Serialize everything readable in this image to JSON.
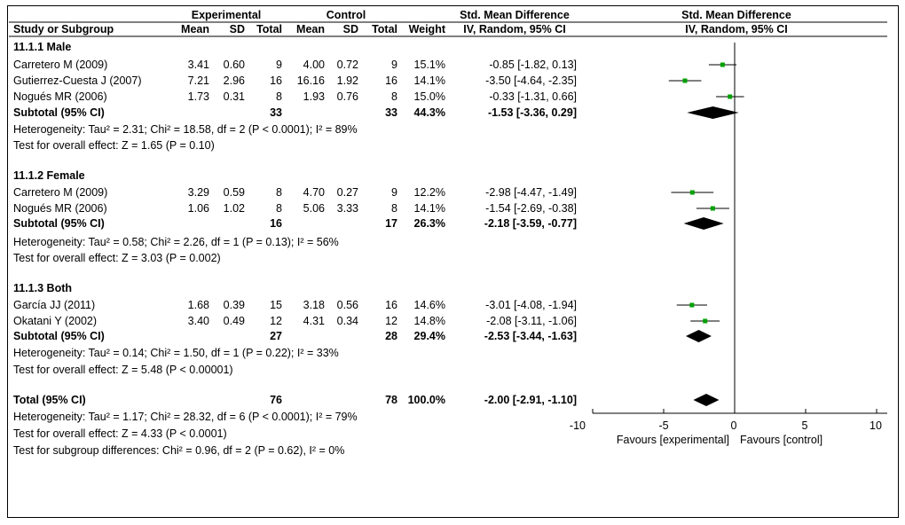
{
  "header": {
    "study_or_subgroup": "Study or Subgroup",
    "experimental": "Experimental",
    "control": "Control",
    "mean": "Mean",
    "sd": "SD",
    "total": "Total",
    "weight": "Weight",
    "smd": "Std. Mean Difference",
    "method": "IV, Random, 95% CI"
  },
  "groups": [
    {
      "title": "11.1.1 Male",
      "studies": [
        {
          "study": "Carretero M (2009)",
          "e_mean": "3.41",
          "e_sd": "0.60",
          "e_total": "9",
          "c_mean": "4.00",
          "c_sd": "0.72",
          "c_total": "9",
          "weight": "15.1%",
          "ci": "-0.85 [-1.82, 0.13]"
        },
        {
          "study": "Gutierrez-Cuesta J (2007)",
          "e_mean": "7.21",
          "e_sd": "2.96",
          "e_total": "16",
          "c_mean": "16.16",
          "c_sd": "1.92",
          "c_total": "16",
          "weight": "14.1%",
          "ci": "-3.50 [-4.64, -2.35]"
        },
        {
          "study": "Nogués MR (2006)",
          "e_mean": "1.73",
          "e_sd": "0.31",
          "e_total": "8",
          "c_mean": "1.93",
          "c_sd": "0.76",
          "c_total": "8",
          "weight": "15.0%",
          "ci": "-0.33 [-1.31, 0.66]"
        }
      ],
      "subtotal": {
        "label": "Subtotal (95% CI)",
        "e_total": "33",
        "c_total": "33",
        "weight": "44.3%",
        "ci": "-1.53 [-3.36, 0.29]"
      },
      "heterogeneity": "Heterogeneity: Tau² = 2.31; Chi² = 18.58, df = 2 (P < 0.0001); I² = 89%",
      "overall": "Test for overall effect: Z = 1.65 (P = 0.10)"
    },
    {
      "title": "11.1.2 Female",
      "studies": [
        {
          "study": "Carretero M (2009)",
          "e_mean": "3.29",
          "e_sd": "0.59",
          "e_total": "8",
          "c_mean": "4.70",
          "c_sd": "0.27",
          "c_total": "9",
          "weight": "12.2%",
          "ci": "-2.98 [-4.47, -1.49]"
        },
        {
          "study": "Nogués MR (2006)",
          "e_mean": "1.06",
          "e_sd": "1.02",
          "e_total": "8",
          "c_mean": "5.06",
          "c_sd": "3.33",
          "c_total": "8",
          "weight": "14.1%",
          "ci": "-1.54 [-2.69, -0.38]"
        }
      ],
      "subtotal": {
        "label": "Subtotal (95% CI)",
        "e_total": "16",
        "c_total": "17",
        "weight": "26.3%",
        "ci": "-2.18 [-3.59, -0.77]"
      },
      "heterogeneity": "Heterogeneity: Tau² = 0.58; Chi² = 2.26, df = 1 (P = 0.13); I² = 56%",
      "overall": "Test for overall effect: Z = 3.03 (P = 0.002)"
    },
    {
      "title": "11.1.3 Both",
      "studies": [
        {
          "study": "García JJ (2011)",
          "e_mean": "1.68",
          "e_sd": "0.39",
          "e_total": "15",
          "c_mean": "3.18",
          "c_sd": "0.56",
          "c_total": "16",
          "weight": "14.6%",
          "ci": "-3.01 [-4.08, -1.94]"
        },
        {
          "study": "Okatani Y (2002)",
          "e_mean": "3.40",
          "e_sd": "0.49",
          "e_total": "12",
          "c_mean": "4.31",
          "c_sd": "0.34",
          "c_total": "12",
          "weight": "14.8%",
          "ci": "-2.08 [-3.11, -1.06]"
        }
      ],
      "subtotal": {
        "label": "Subtotal (95% CI)",
        "e_total": "27",
        "c_total": "28",
        "weight": "29.4%",
        "ci": "-2.53 [-3.44, -1.63]"
      },
      "heterogeneity": "Heterogeneity: Tau² = 0.14; Chi² = 1.50, df = 1 (P = 0.22); I² = 33%",
      "overall": "Test for overall effect: Z = 5.48 (P < 0.00001)"
    }
  ],
  "total": {
    "label": "Total (95% CI)",
    "e_total": "76",
    "c_total": "78",
    "weight": "100.0%",
    "ci": "-2.00 [-2.91, -1.10]",
    "heterogeneity": "Heterogeneity: Tau² = 1.17; Chi² = 28.32, df = 6 (P < 0.0001); I² = 79%",
    "overall": "Test for overall effect: Z = 4.33 (P < 0.0001)",
    "subgroup_diff": "Test for subgroup differences: Chi² = 0.96, df = 2 (P = 0.62), I² = 0%"
  },
  "chart_data": {
    "type": "forest",
    "title": "Std. Mean Difference",
    "subtitle": "IV, Random, 95% CI",
    "xlim": [
      -10,
      10
    ],
    "xticks": [
      "-10",
      "-5",
      "0",
      "5",
      "10"
    ],
    "xtick_values": [
      -10,
      -5,
      0,
      5,
      10
    ],
    "favours_left": "Favours [experimental]",
    "favours_right": "Favours [control]",
    "studies": [
      {
        "name": "Carretero M (2009) Male",
        "est": -0.85,
        "lo": -1.82,
        "hi": 0.13
      },
      {
        "name": "Gutierrez-Cuesta J (2007)",
        "est": -3.5,
        "lo": -4.64,
        "hi": -2.35
      },
      {
        "name": "Nogués MR (2006) Male",
        "est": -0.33,
        "lo": -1.31,
        "hi": 0.66
      },
      {
        "name": "Carretero M (2009) Female",
        "est": -2.98,
        "lo": -4.47,
        "hi": -1.49
      },
      {
        "name": "Nogués MR (2006) Female",
        "est": -1.54,
        "lo": -2.69,
        "hi": -0.38
      },
      {
        "name": "García JJ (2011)",
        "est": -3.01,
        "lo": -4.08,
        "hi": -1.94
      },
      {
        "name": "Okatani Y (2002)",
        "est": -2.08,
        "lo": -3.11,
        "hi": -1.06
      }
    ],
    "diamonds": [
      {
        "name": "Subtotal Male",
        "est": -1.53,
        "lo": -3.36,
        "hi": 0.29
      },
      {
        "name": "Subtotal Female",
        "est": -2.18,
        "lo": -3.59,
        "hi": -0.77
      },
      {
        "name": "Subtotal Both",
        "est": -2.53,
        "lo": -3.44,
        "hi": -1.63
      },
      {
        "name": "Total",
        "est": -2.0,
        "lo": -2.91,
        "hi": -1.1
      }
    ],
    "colors": {
      "marker": "#00a000",
      "line": "#000000",
      "diamond": "#000000"
    }
  }
}
